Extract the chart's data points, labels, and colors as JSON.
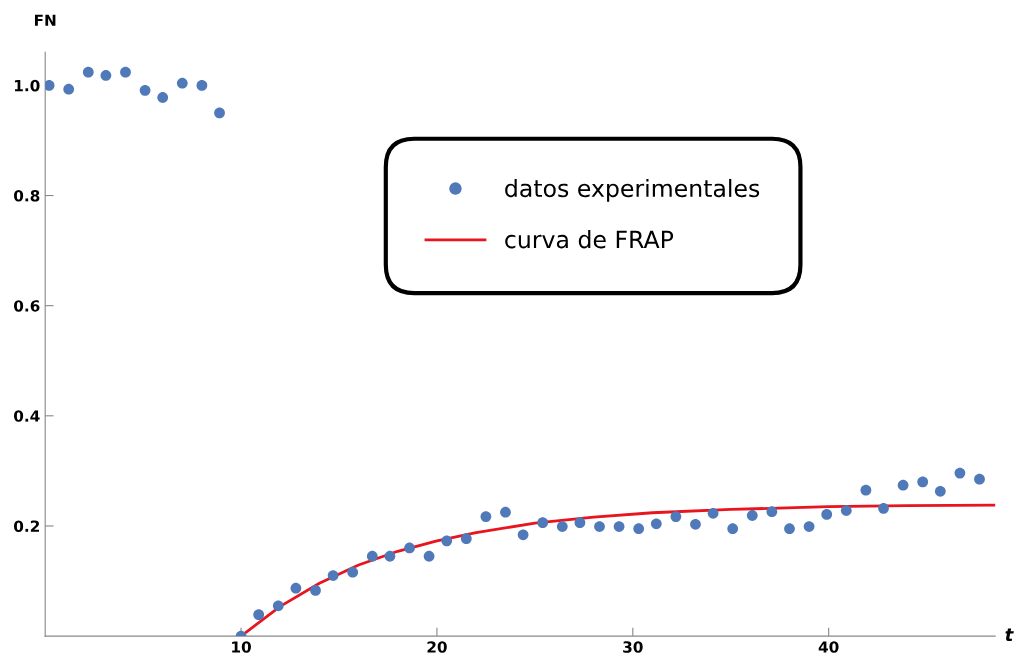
{
  "chart_data": {
    "type": "scatter",
    "xlabel": "t",
    "ylabel": "FN",
    "xlim": [
      0,
      48.5
    ],
    "ylim": [
      0,
      1.06
    ],
    "xticks": [
      10,
      20,
      30,
      40
    ],
    "yticks": [
      {
        "value": 0.2,
        "label": "0.2"
      },
      {
        "value": 0.4,
        "label": "0.4"
      },
      {
        "value": 0.6,
        "label": "0.6"
      },
      {
        "value": 0.8,
        "label": "0.8"
      },
      {
        "value": 1.0,
        "label": "1.0"
      }
    ],
    "grid": false,
    "legend": "top right",
    "series": [
      {
        "name": "datos experimentales",
        "marker": "circle",
        "color": "#5079b9",
        "x": [
          0.2,
          1.2,
          2.2,
          3.1,
          4.1,
          5.1,
          6.0,
          7.0,
          8.0,
          8.9,
          10.0,
          10.9,
          11.9,
          12.8,
          13.8,
          14.7,
          15.7,
          16.7,
          17.6,
          18.6,
          19.6,
          20.5,
          21.5,
          22.5,
          23.5,
          24.4,
          25.4,
          26.4,
          27.3,
          28.3,
          29.3,
          30.3,
          31.2,
          32.2,
          33.2,
          34.1,
          35.1,
          36.1,
          37.1,
          38.0,
          39.0,
          39.9,
          40.9,
          41.9,
          42.8,
          43.8,
          44.8,
          45.7,
          46.7,
          47.7
        ],
        "values": [
          1.0,
          0.993,
          1.024,
          1.018,
          1.024,
          0.991,
          0.978,
          1.004,
          1.0,
          0.95,
          0.0,
          0.039,
          0.055,
          0.087,
          0.083,
          0.11,
          0.116,
          0.145,
          0.145,
          0.16,
          0.145,
          0.173,
          0.177,
          0.217,
          0.225,
          0.184,
          0.206,
          0.199,
          0.206,
          0.199,
          0.199,
          0.195,
          0.204,
          0.217,
          0.203,
          0.223,
          0.195,
          0.219,
          0.226,
          0.195,
          0.199,
          0.221,
          0.228,
          0.265,
          0.232,
          0.274,
          0.28,
          0.263,
          0.296,
          0.285
        ]
      },
      {
        "name": "curva de FRAP",
        "type": "line",
        "color": "#e8141e",
        "line_style": "solid",
        "x": [
          10,
          12,
          14,
          16,
          18,
          20,
          22,
          25,
          28,
          31,
          35,
          40,
          44,
          48.5
        ],
        "values": [
          0.0,
          0.054,
          0.096,
          0.129,
          0.154,
          0.173,
          0.188,
          0.205,
          0.216,
          0.224,
          0.23,
          0.235,
          0.237,
          0.238
        ]
      }
    ]
  }
}
